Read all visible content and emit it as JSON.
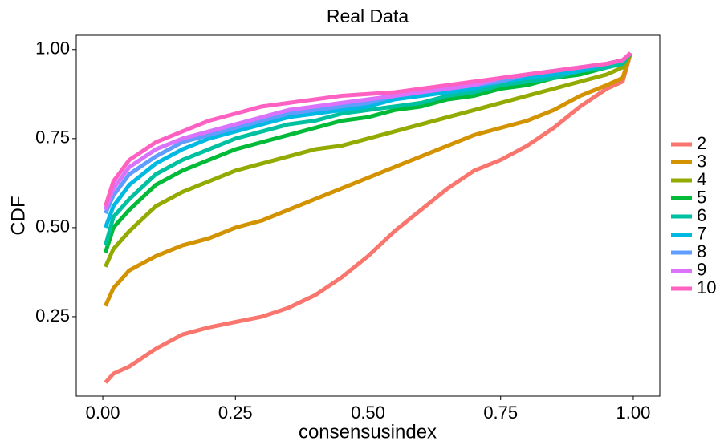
{
  "chart_data": {
    "type": "line",
    "title": "Real Data",
    "x_label": "consensusindex",
    "y_label": "CDF",
    "x": [
      0.005,
      0.02,
      0.05,
      0.1,
      0.15,
      0.2,
      0.25,
      0.3,
      0.35,
      0.4,
      0.45,
      0.5,
      0.55,
      0.6,
      0.65,
      0.7,
      0.75,
      0.8,
      0.85,
      0.9,
      0.95,
      0.98,
      0.995
    ],
    "series": [
      {
        "name": "2",
        "color": "#F8766D",
        "values": [
          0.065,
          0.09,
          0.11,
          0.16,
          0.2,
          0.22,
          0.235,
          0.25,
          0.275,
          0.31,
          0.36,
          0.42,
          0.49,
          0.55,
          0.61,
          0.66,
          0.69,
          0.73,
          0.78,
          0.84,
          0.89,
          0.91,
          0.99
        ]
      },
      {
        "name": "3",
        "color": "#D39200",
        "values": [
          0.28,
          0.33,
          0.38,
          0.42,
          0.45,
          0.47,
          0.5,
          0.52,
          0.55,
          0.58,
          0.61,
          0.64,
          0.67,
          0.7,
          0.73,
          0.76,
          0.78,
          0.8,
          0.83,
          0.87,
          0.9,
          0.92,
          0.99
        ]
      },
      {
        "name": "4",
        "color": "#93AA00",
        "values": [
          0.39,
          0.44,
          0.49,
          0.56,
          0.6,
          0.63,
          0.66,
          0.68,
          0.7,
          0.72,
          0.73,
          0.75,
          0.77,
          0.79,
          0.81,
          0.83,
          0.85,
          0.87,
          0.89,
          0.91,
          0.93,
          0.95,
          0.99
        ]
      },
      {
        "name": "5",
        "color": "#00BA38",
        "values": [
          0.43,
          0.5,
          0.55,
          0.62,
          0.66,
          0.69,
          0.72,
          0.74,
          0.76,
          0.78,
          0.8,
          0.81,
          0.83,
          0.84,
          0.86,
          0.87,
          0.89,
          0.9,
          0.92,
          0.93,
          0.95,
          0.96,
          0.99
        ]
      },
      {
        "name": "6",
        "color": "#00C19F",
        "values": [
          0.45,
          0.53,
          0.58,
          0.65,
          0.69,
          0.72,
          0.75,
          0.77,
          0.79,
          0.8,
          0.82,
          0.83,
          0.84,
          0.85,
          0.87,
          0.88,
          0.9,
          0.91,
          0.92,
          0.94,
          0.95,
          0.96,
          0.99
        ]
      },
      {
        "name": "7",
        "color": "#00B9E3",
        "values": [
          0.5,
          0.56,
          0.62,
          0.68,
          0.72,
          0.75,
          0.77,
          0.79,
          0.81,
          0.82,
          0.83,
          0.84,
          0.86,
          0.87,
          0.88,
          0.89,
          0.91,
          0.92,
          0.93,
          0.94,
          0.96,
          0.97,
          0.99
        ]
      },
      {
        "name": "8",
        "color": "#619CFF",
        "values": [
          0.54,
          0.59,
          0.65,
          0.7,
          0.74,
          0.76,
          0.78,
          0.8,
          0.82,
          0.83,
          0.84,
          0.85,
          0.87,
          0.88,
          0.89,
          0.9,
          0.91,
          0.93,
          0.94,
          0.95,
          0.96,
          0.97,
          0.99
        ]
      },
      {
        "name": "9",
        "color": "#DB72FB",
        "values": [
          0.55,
          0.61,
          0.67,
          0.72,
          0.75,
          0.77,
          0.79,
          0.81,
          0.83,
          0.84,
          0.85,
          0.86,
          0.87,
          0.88,
          0.89,
          0.9,
          0.92,
          0.93,
          0.94,
          0.95,
          0.96,
          0.97,
          0.99
        ]
      },
      {
        "name": "10",
        "color": "#FF61C3",
        "values": [
          0.56,
          0.63,
          0.69,
          0.74,
          0.77,
          0.8,
          0.82,
          0.84,
          0.85,
          0.86,
          0.87,
          0.875,
          0.88,
          0.89,
          0.9,
          0.91,
          0.92,
          0.93,
          0.94,
          0.95,
          0.96,
          0.97,
          0.99
        ]
      }
    ],
    "xlim": [
      -0.05,
      1.05
    ],
    "ylim": [
      0.027,
      1.04
    ],
    "xticks": [
      {
        "value": 0,
        "label": "0.00"
      },
      {
        "value": 0.25,
        "label": "0.25"
      },
      {
        "value": 0.5,
        "label": "0.50"
      },
      {
        "value": 0.75,
        "label": "0.75"
      },
      {
        "value": 1,
        "label": "1.00"
      }
    ],
    "yticks": [
      {
        "value": 0.25,
        "label": "0.25"
      },
      {
        "value": 0.5,
        "label": "0.50"
      },
      {
        "value": 0.75,
        "label": "0.75"
      },
      {
        "value": 1,
        "label": "1.00"
      }
    ],
    "grid": false,
    "legend": "right"
  }
}
